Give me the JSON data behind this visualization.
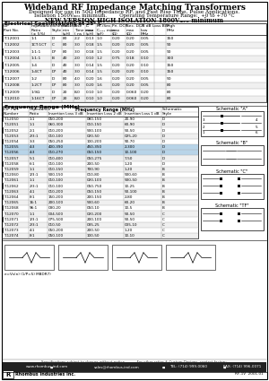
{
  "title": "Wideband RF Impedance Matching Transformers",
  "subtitle1": "Designed for use in 50Ω Impedance RF, and Fast Rise Time, Pulse Applications.",
  "subtitle2": "Isolation 1500Vₘₑₐ minimum.        Operating Temperature Range:  +0 to +70 °C",
  "subtitle3": "NEW VERSION HIGH ISOLATION 1800Vₘₑₐ minimum",
  "section1_title": "Electrical Specifications at 25° C",
  "table1_rows": [
    [
      "T-12001",
      "1:1",
      "D",
      "80",
      "2.2",
      "0.13",
      "1.0",
      "0.20",
      "0.20",
      "0.05",
      "150"
    ],
    [
      "T-12002",
      "1CT:1CT",
      "C",
      "80",
      "3.0",
      "0.18",
      "1.5",
      "0.20",
      "0.20",
      "0.05",
      "90"
    ],
    [
      "T-12003",
      "1:1:1",
      "D*",
      "80",
      "3.0",
      "0.18",
      "1.5",
      "0.20",
      "0.20",
      "0.05",
      "90"
    ],
    [
      "T-12004",
      "1:1:1",
      "B",
      "40",
      "2.0",
      "0.10",
      "1.2",
      "0.75",
      "0.18",
      "0.10",
      "300"
    ],
    [
      "T-12005",
      "1:4",
      "D",
      "40",
      "3.0",
      "0.14",
      "1.5",
      "0.20",
      "0.20",
      "0.10",
      "150"
    ],
    [
      "T-12006",
      "1:4CT",
      "D*",
      "40",
      "3.0",
      "0.14",
      "1.5",
      "0.20",
      "0.20",
      "0.10",
      "150"
    ],
    [
      "T-12007",
      "1:2",
      "D",
      "80",
      "4.0",
      "0.20",
      "1.6",
      "0.20",
      "0.20",
      "0.05",
      "50"
    ],
    [
      "T-12008",
      "1:2CT",
      "D*",
      "80",
      "3.0",
      "0.20",
      "1.6",
      "0.20",
      "0.20",
      "0.05",
      "80"
    ],
    [
      "T-12009",
      "1:9Ω",
      "D",
      "20",
      "8.0",
      "0.10",
      "1.0",
      "0.20",
      "0.060",
      "0.20",
      "80"
    ],
    [
      "T-12010",
      "1:16CT",
      "D*",
      "20",
      "8.0",
      "0.10",
      "1.0",
      "0.20",
      "0.060",
      "0.20",
      "80"
    ]
  ],
  "table2_rows": [
    [
      "T-12050",
      "1:1",
      "050-200",
      "080-150",
      "20-90",
      "D"
    ],
    [
      "T-12051",
      "1:1",
      "060-300",
      "010-150",
      "60-90",
      "D"
    ],
    [
      "T-12052",
      "2:1",
      "010-200",
      "500-100",
      "50-50",
      "D"
    ],
    [
      "T-12053",
      "2/3:1",
      "010-100",
      "020-50",
      "025-20",
      "D"
    ],
    [
      "T-12054",
      "3:3",
      "050-250",
      "100-200",
      "90-70",
      "D"
    ],
    [
      "T-12055",
      "4:3",
      "400-390",
      "450-350",
      "2-300",
      "D"
    ],
    [
      "T-12056",
      "4:3",
      "010-270",
      "050-150",
      "10-100",
      "D"
    ],
    [
      "T-12057",
      "5:1",
      "010-400",
      "050-275",
      "7-50",
      "D"
    ],
    [
      "T-12058",
      "6:1",
      "010-100",
      "200-50",
      "1-20",
      "D"
    ],
    [
      "T-12059",
      "1:1",
      "010-150",
      "700-90",
      "1-20",
      "B"
    ],
    [
      "T-12060",
      "1/3:1",
      "500-150",
      "010-80",
      "500-60",
      "B"
    ],
    [
      "T-12061",
      "1:1",
      "010-100",
      "020-100",
      "500-50",
      "B"
    ],
    [
      "T-12062",
      "2/3:1",
      "010-100",
      "050-750",
      "10-25",
      "B"
    ],
    [
      "T-12063",
      "4:1",
      "010-200",
      "050-150",
      "50-100",
      "B"
    ],
    [
      "T-12064",
      "8:1",
      "150-200",
      "200-150",
      "2-80",
      "B"
    ],
    [
      "T-12065",
      "16:1",
      "200-100",
      "500-60",
      "60-20",
      "B"
    ],
    [
      "T-12068",
      "96:1",
      "030-20",
      "050-10",
      "10-5",
      "B"
    ],
    [
      "T-12070",
      "1:1",
      "004-500",
      "020-200",
      "50-50",
      "C"
    ],
    [
      "T-12071",
      "1/3:1",
      "075-500",
      "200-100",
      "50-50",
      "C"
    ],
    [
      "T-12072",
      "2/3:1",
      "010-50",
      "035-25",
      "005-10",
      "C"
    ],
    [
      "T-12073",
      "4:1",
      "050-200",
      "200-50",
      "1-20",
      "C"
    ],
    [
      "T-12074",
      "8:1",
      "050-100",
      "100-50",
      "10-10",
      "C"
    ]
  ],
  "highlight_rows_t2": [
    5,
    6
  ],
  "highlight_color": "#b8d4e8",
  "footer_spec": "Specifications subject to change without notice.          For other ratios & Custom Designs, contact factory.",
  "footer_website": "www.rhombus-ind.com",
  "footer_email": "sales@rhombus-ind.com",
  "footer_tel": "TEL: (714) 999-0060",
  "footer_fax": "FAX: (714) 996-0071",
  "footer_company": "Rhombus Industries Inc.",
  "footer_ref": "RF-1V  2001-01"
}
